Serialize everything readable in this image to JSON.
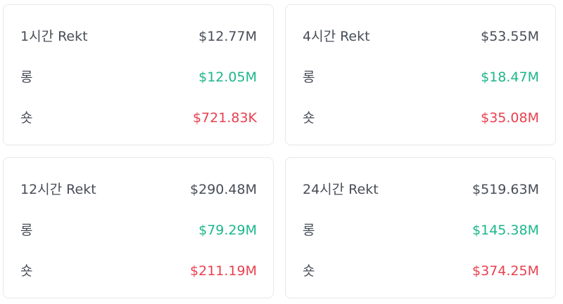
{
  "colors": {
    "text": "#474d57",
    "long": "#1cb68a",
    "short": "#e8404f",
    "border": "#e6e8ea"
  },
  "cards": [
    {
      "title": "1시간 Rekt",
      "total": "$12.77M",
      "long_label": "롱",
      "long_value": "$12.05M",
      "short_label": "숏",
      "short_value": "$721.83K"
    },
    {
      "title": "4시간 Rekt",
      "total": "$53.55M",
      "long_label": "롱",
      "long_value": "$18.47M",
      "short_label": "숏",
      "short_value": "$35.08M"
    },
    {
      "title": "12시간 Rekt",
      "total": "$290.48M",
      "long_label": "롱",
      "long_value": "$79.29M",
      "short_label": "숏",
      "short_value": "$211.19M"
    },
    {
      "title": "24시간 Rekt",
      "total": "$519.63M",
      "long_label": "롱",
      "long_value": "$145.38M",
      "short_label": "숏",
      "short_value": "$374.25M"
    }
  ]
}
